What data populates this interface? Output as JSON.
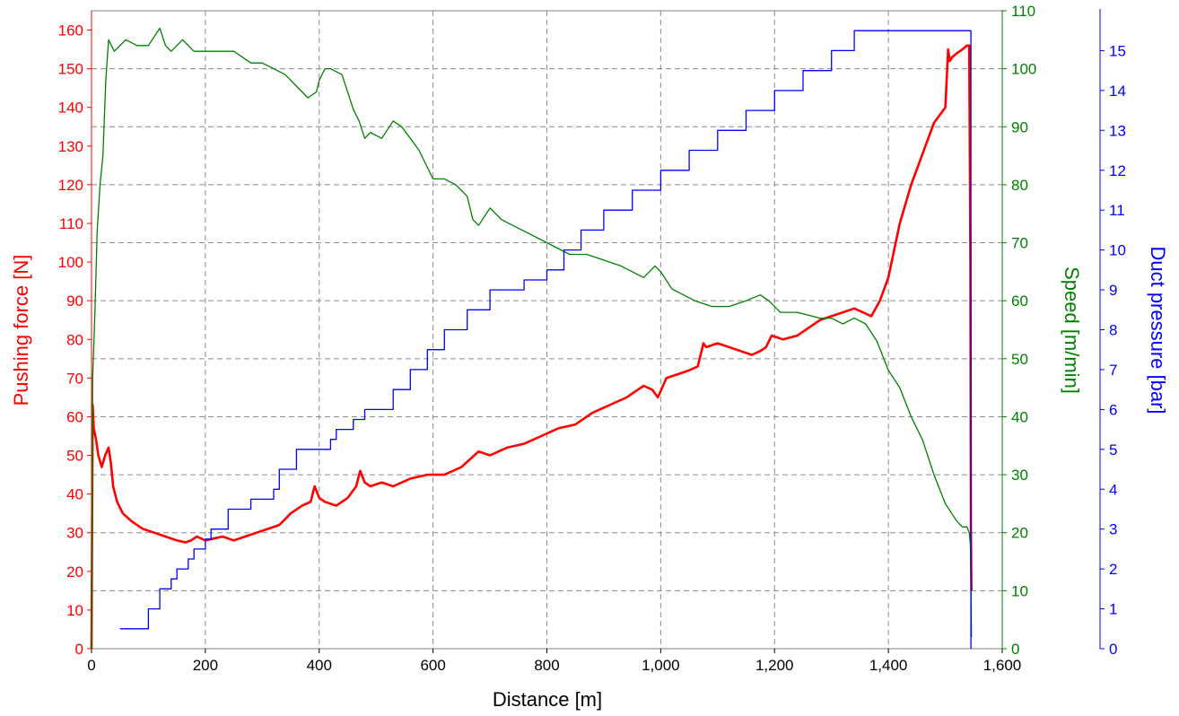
{
  "chart_data": {
    "type": "line",
    "xlabel": "Distance [m]",
    "xlim": [
      0,
      1600
    ],
    "x_ticks": [
      0,
      200,
      400,
      600,
      800,
      1000,
      1200,
      1400,
      1600
    ],
    "x_tick_labels": [
      "0",
      "200",
      "400",
      "600",
      "800",
      "1,000",
      "1,200",
      "1,400",
      "1,600"
    ],
    "grid": true,
    "legend": "none",
    "axes": [
      {
        "id": "force",
        "label": "Pushing force [N]",
        "color": "#ff0000",
        "position": "left",
        "lim": [
          0,
          165
        ],
        "ticks": [
          0,
          10,
          20,
          30,
          40,
          50,
          60,
          70,
          80,
          90,
          100,
          110,
          120,
          130,
          140,
          150,
          160
        ]
      },
      {
        "id": "speed",
        "label": "Speed [m/min]",
        "color": "#008000",
        "position": "right",
        "lim": [
          0,
          110
        ],
        "ticks": [
          0,
          10,
          20,
          30,
          40,
          50,
          60,
          70,
          80,
          90,
          100,
          110
        ]
      },
      {
        "id": "pressure",
        "label": "Duct pressure [bar]",
        "color": "#0000ff",
        "position": "right-outer",
        "lim": [
          0,
          16
        ],
        "ticks": [
          0,
          1,
          2,
          3,
          4,
          5,
          6,
          7,
          8,
          9,
          10,
          11,
          12,
          13,
          14,
          15
        ]
      }
    ],
    "series": [
      {
        "axis": "force",
        "color": "#ff0000",
        "line_width": 2.6,
        "x": [
          0,
          2,
          4,
          8,
          12,
          18,
          24,
          30,
          34,
          38,
          45,
          55,
          70,
          90,
          110,
          130,
          150,
          165,
          175,
          185,
          200,
          215,
          230,
          250,
          270,
          290,
          310,
          330,
          350,
          370,
          385,
          392,
          400,
          410,
          430,
          450,
          465,
          472,
          480,
          490,
          510,
          530,
          560,
          590,
          620,
          650,
          680,
          700,
          730,
          760,
          790,
          820,
          850,
          880,
          910,
          940,
          970,
          985,
          995,
          1010,
          1030,
          1050,
          1065,
          1075,
          1080,
          1100,
          1120,
          1140,
          1160,
          1175,
          1185,
          1195,
          1215,
          1240,
          1260,
          1280,
          1300,
          1320,
          1340,
          1355,
          1370,
          1385,
          1400,
          1420,
          1440,
          1460,
          1480,
          1500,
          1505,
          1508,
          1512,
          1520,
          1530,
          1538,
          1542,
          1544,
          1545,
          1546
        ],
        "y": [
          0,
          63,
          57,
          54,
          50,
          47,
          50,
          52,
          48,
          42,
          38,
          35,
          33,
          31,
          30,
          29,
          28,
          27.5,
          28,
          29,
          28,
          28.5,
          29,
          28,
          29,
          30,
          31,
          32,
          35,
          37,
          38,
          42,
          39,
          38,
          37,
          39,
          42,
          46,
          43,
          42,
          43,
          42,
          44,
          45,
          45,
          47,
          51,
          50,
          52,
          53,
          55,
          57,
          58,
          61,
          63,
          65,
          68,
          67,
          65,
          70,
          71,
          72,
          73,
          79,
          78,
          79,
          78,
          77,
          76,
          77,
          78,
          81,
          80,
          81,
          83,
          85,
          86,
          87,
          88,
          87,
          86,
          90,
          96,
          110,
          120,
          128,
          136,
          140,
          155,
          152,
          153,
          154,
          155,
          156,
          156,
          100,
          30,
          15
        ],
        "values_note": ""
      },
      {
        "axis": "speed",
        "color": "#008000",
        "line_width": 1.3,
        "x": [
          0,
          2,
          4,
          6,
          10,
          15,
          20,
          25,
          30,
          40,
          60,
          80,
          100,
          120,
          130,
          140,
          160,
          180,
          200,
          230,
          250,
          280,
          300,
          320,
          340,
          360,
          380,
          395,
          400,
          410,
          420,
          440,
          460,
          470,
          480,
          490,
          510,
          530,
          545,
          560,
          575,
          590,
          600,
          620,
          640,
          660,
          670,
          680,
          700,
          720,
          740,
          760,
          800,
          840,
          870,
          900,
          930,
          950,
          970,
          990,
          1000,
          1020,
          1040,
          1060,
          1090,
          1120,
          1150,
          1175,
          1190,
          1200,
          1210,
          1240,
          1280,
          1300,
          1320,
          1340,
          1360,
          1380,
          1400,
          1420,
          1440,
          1460,
          1480,
          1500,
          1520,
          1530,
          1538,
          1542,
          1544,
          1545,
          1546
        ],
        "y": [
          0,
          47,
          52,
          58,
          72,
          80,
          85,
          98,
          105,
          103,
          105,
          104,
          104,
          107,
          104,
          103,
          105,
          103,
          103,
          103,
          103,
          101,
          101,
          100,
          99,
          97,
          95,
          96,
          98,
          100,
          100,
          99,
          93,
          91,
          88,
          89,
          88,
          91,
          90,
          88,
          86,
          83,
          81,
          81,
          80,
          78,
          74,
          73,
          76,
          74,
          73,
          72,
          70,
          68,
          68,
          67,
          66,
          65,
          64,
          66,
          65,
          62,
          61,
          60,
          59,
          59,
          60,
          61,
          60,
          59,
          58,
          58,
          57,
          57,
          56,
          57,
          56,
          53,
          48,
          45,
          40,
          36,
          30,
          25,
          22,
          21,
          21,
          20,
          18,
          12,
          2
        ],
        "values_note": ""
      },
      {
        "axis": "pressure",
        "color": "#0000ff",
        "line_width": 1.3,
        "step": true,
        "x": [
          50,
          100,
          100,
          120,
          120,
          140,
          140,
          150,
          150,
          170,
          170,
          180,
          180,
          200,
          200,
          210,
          210,
          240,
          240,
          280,
          280,
          320,
          320,
          330,
          330,
          360,
          360,
          420,
          420,
          430,
          430,
          460,
          460,
          480,
          480,
          530,
          530,
          560,
          560,
          590,
          590,
          620,
          620,
          660,
          660,
          700,
          700,
          760,
          760,
          800,
          800,
          830,
          830,
          860,
          860,
          900,
          900,
          950,
          950,
          1000,
          1000,
          1050,
          1050,
          1100,
          1100,
          1150,
          1150,
          1200,
          1200,
          1250,
          1250,
          1300,
          1300,
          1340,
          1340,
          1545,
          1545
        ],
        "y": [
          0.5,
          0.5,
          1,
          1,
          1.5,
          1.5,
          1.75,
          1.75,
          2,
          2,
          2.25,
          2.25,
          2.5,
          2.5,
          2.75,
          2.75,
          3,
          3,
          3.5,
          3.5,
          3.75,
          3.75,
          4,
          4,
          4.5,
          4.5,
          5,
          5,
          5.25,
          5.25,
          5.5,
          5.5,
          5.75,
          5.75,
          6,
          6,
          6.5,
          6.5,
          7,
          7,
          7.5,
          7.5,
          8,
          8,
          8.5,
          8.5,
          9,
          9,
          9.25,
          9.25,
          9.5,
          9.5,
          10,
          10,
          10.5,
          10.5,
          11,
          11,
          11.5,
          11.5,
          12,
          12,
          12.5,
          12.5,
          13,
          13,
          13.5,
          13.5,
          14,
          14,
          14.5,
          14.5,
          15,
          15,
          15.5,
          15.5,
          0
        ],
        "values_note": ""
      }
    ]
  }
}
